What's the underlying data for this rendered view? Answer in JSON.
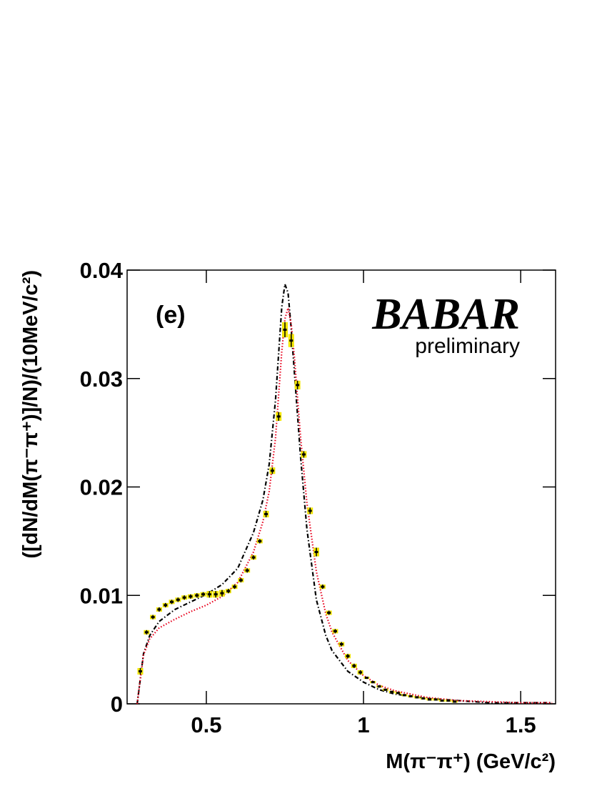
{
  "chart_data": {
    "type": "errorbar",
    "panel_label": "(e)",
    "logo": "BABAR",
    "logo_subtitle": "preliminary",
    "x_label": "M(π⁻π⁺) (GeV/c²)",
    "y_label": "([dN/dM(π⁻π⁺)]/N)/(10MeV/c²)",
    "xlim": [
      0.248,
      1.611
    ],
    "ylim": [
      0,
      0.04
    ],
    "xticks": [
      0.5,
      1,
      1.5
    ],
    "yticks": [
      0,
      0.01,
      0.02,
      0.03,
      0.04
    ],
    "data": {
      "color": "#000000",
      "error_fill": "#f2e600",
      "x": [
        0.29,
        0.31,
        0.33,
        0.35,
        0.37,
        0.39,
        0.41,
        0.43,
        0.45,
        0.47,
        0.49,
        0.51,
        0.53,
        0.55,
        0.57,
        0.59,
        0.61,
        0.63,
        0.65,
        0.67,
        0.69,
        0.71,
        0.73,
        0.75,
        0.77,
        0.79,
        0.81,
        0.83,
        0.85,
        0.87,
        0.89,
        0.91,
        0.93,
        0.95,
        0.97,
        0.99,
        1.01,
        1.03,
        1.05,
        1.07,
        1.09,
        1.11,
        1.13,
        1.15,
        1.17,
        1.19,
        1.21,
        1.23,
        1.25,
        1.27,
        1.29
      ],
      "values": [
        0.003,
        0.0066,
        0.008,
        0.0087,
        0.0091,
        0.0094,
        0.0096,
        0.0098,
        0.0099,
        0.01,
        0.0101,
        0.0101,
        0.0101,
        0.0102,
        0.0104,
        0.0108,
        0.0114,
        0.0123,
        0.0135,
        0.015,
        0.0175,
        0.0215,
        0.0265,
        0.0345,
        0.0335,
        0.0294,
        0.023,
        0.0178,
        0.014,
        0.0108,
        0.0084,
        0.0067,
        0.0055,
        0.0044,
        0.0035,
        0.0029,
        0.0024,
        0.002,
        0.0016,
        0.0013,
        0.0011,
        0.001,
        0.0008,
        0.0007,
        0.0006,
        0.0005,
        0.0004,
        0.0004,
        0.0003,
        0.0003,
        0.0002
      ],
      "errors": [
        0.0003,
        0.0002,
        0.0002,
        0.0002,
        0.0002,
        0.0002,
        0.0002,
        0.0002,
        0.0002,
        0.0002,
        0.0002,
        0.0003,
        0.0003,
        0.0003,
        0.0002,
        0.0002,
        0.0002,
        0.0002,
        0.0002,
        0.0002,
        0.0003,
        0.0003,
        0.0004,
        0.0007,
        0.0006,
        0.0004,
        0.0003,
        0.0003,
        0.0004,
        0.0002,
        0.0002,
        0.0002,
        0.0002,
        0.0002,
        0.0002,
        0.0002,
        0.0001,
        0.0001,
        0.0001,
        0.0001,
        0.0001,
        0.0001,
        0.0001,
        0.0001,
        0.0001,
        0.0001,
        0.0001,
        0.0001,
        0.0001,
        0.0001,
        0.0001
      ]
    },
    "curves": [
      {
        "color": "#000000",
        "dash": "dashdot",
        "x": [
          0.28,
          0.29,
          0.3,
          0.32,
          0.35,
          0.4,
          0.45,
          0.5,
          0.55,
          0.6,
          0.65,
          0.68,
          0.7,
          0.72,
          0.74,
          0.75,
          0.76,
          0.77,
          0.78,
          0.8,
          0.82,
          0.85,
          0.88,
          0.9,
          0.95,
          1.0,
          1.05,
          1.1,
          1.2,
          1.3,
          1.4,
          1.5,
          1.6
        ],
        "values": [
          0,
          0.0023,
          0.0046,
          0.0063,
          0.0076,
          0.0087,
          0.0094,
          0.0101,
          0.011,
          0.0125,
          0.0158,
          0.0188,
          0.0221,
          0.028,
          0.0366,
          0.0387,
          0.0379,
          0.0346,
          0.0306,
          0.0227,
          0.0161,
          0.0096,
          0.0063,
          0.0049,
          0.003,
          0.002,
          0.0013,
          0.0009,
          0.0005,
          0.0003,
          0.0001,
          0.0001,
          0.0001
        ]
      },
      {
        "color": "#e8001c",
        "dash": "dotted",
        "x": [
          0.28,
          0.29,
          0.3,
          0.32,
          0.35,
          0.4,
          0.45,
          0.5,
          0.55,
          0.6,
          0.65,
          0.68,
          0.7,
          0.72,
          0.74,
          0.75,
          0.76,
          0.77,
          0.78,
          0.8,
          0.82,
          0.85,
          0.88,
          0.9,
          0.95,
          1.0,
          1.05,
          1.1,
          1.2,
          1.3,
          1.4,
          1.5,
          1.6
        ],
        "values": [
          0,
          0.0023,
          0.0045,
          0.006,
          0.007,
          0.0078,
          0.0085,
          0.0091,
          0.0099,
          0.0112,
          0.014,
          0.0168,
          0.0196,
          0.0245,
          0.0325,
          0.0355,
          0.0365,
          0.035,
          0.032,
          0.0245,
          0.0185,
          0.0122,
          0.0083,
          0.0066,
          0.004,
          0.0026,
          0.0017,
          0.0012,
          0.0006,
          0.0003,
          0.0002,
          0.0001,
          0.0001
        ]
      }
    ]
  }
}
